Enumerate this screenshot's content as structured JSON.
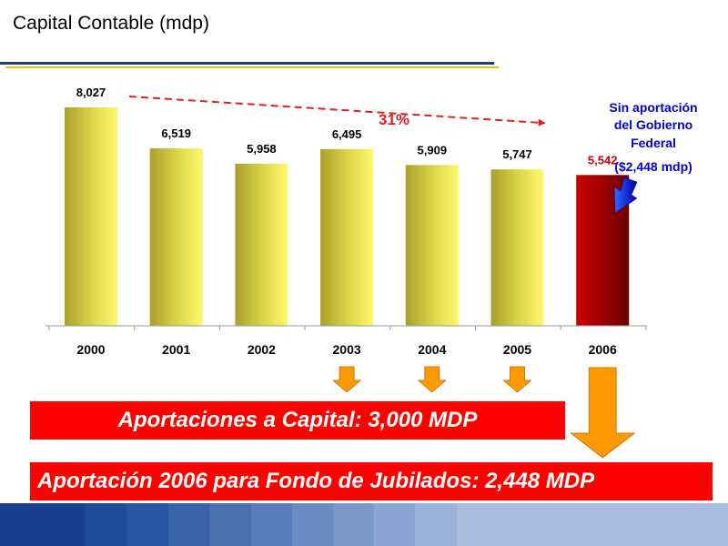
{
  "slide": {
    "title": "Capital Contable (mdp)"
  },
  "chart_data": {
    "type": "bar",
    "categories": [
      "2000",
      "2001",
      "2002",
      "2003",
      "2004",
      "2005",
      "2006"
    ],
    "values": [
      8027,
      6519,
      5958,
      6495,
      5909,
      5747,
      5542
    ],
    "value_labels": [
      "8,027",
      "6,519",
      "5,958",
      "6,495",
      "5,909",
      "5,747",
      "5,542"
    ],
    "highlight_index": 6,
    "colors": {
      "bar": "#e8e44a",
      "highlight_bar": "#b00000",
      "highlight_label": "#cc0000"
    },
    "ylim": [
      0,
      8027
    ],
    "trend": {
      "from": "2000",
      "to": "2005",
      "label": "31%",
      "color": "#e02020"
    },
    "annotation": {
      "lines": [
        "Sin aportación",
        "del Gobierno",
        "Federal",
        "($2,448 mdp)"
      ],
      "color": "#0000cc",
      "target": "2006"
    },
    "down_arrows": [
      "2003",
      "2004",
      "2005"
    ],
    "arrow_color": "#ff9900"
  },
  "banners": {
    "capital": "Aportaciones a Capital: 3,000 MDP",
    "fund": "Aportación 2006 para Fondo de Jubilados: 2,448 MDP"
  },
  "footer": {
    "colors": [
      "#1a3f8f",
      "#1a3f8f",
      "#1f4a9a",
      "#2a55a2",
      "#3a62aa",
      "#4a70b2",
      "#5a7ebb",
      "#6a8bc2",
      "#7a98ca",
      "#8aa5d1",
      "#9ab2d9"
    ]
  }
}
